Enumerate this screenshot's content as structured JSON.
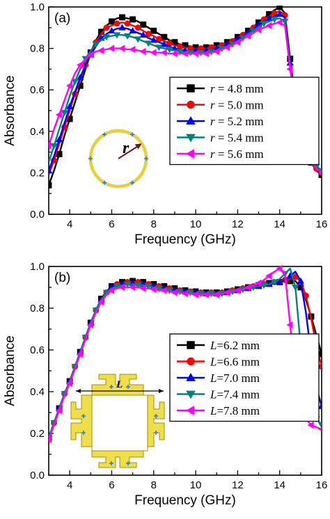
{
  "chart_data": [
    {
      "type": "line",
      "panel_label": "(a)",
      "xlabel": "Frequency (GHz)",
      "ylabel": "Absorbance",
      "xlim": [
        3,
        16
      ],
      "ylim": [
        0.0,
        1.0
      ],
      "xticks": [
        "4",
        "6",
        "8",
        "10",
        "12",
        "14",
        "16"
      ],
      "yticks": [
        "0.0",
        "0.2",
        "0.4",
        "0.6",
        "0.8",
        "1.0"
      ],
      "legend_position": "center-right",
      "inset_label": "r",
      "x": [
        3,
        3.25,
        3.5,
        3.75,
        4,
        4.25,
        4.5,
        4.75,
        5,
        5.25,
        5.5,
        5.75,
        6,
        6.25,
        6.5,
        6.75,
        7,
        7.25,
        7.5,
        7.75,
        8,
        8.25,
        8.5,
        8.75,
        9,
        9.25,
        9.5,
        9.75,
        10,
        10.25,
        10.5,
        10.75,
        11,
        11.25,
        11.5,
        11.75,
        12,
        12.25,
        12.5,
        12.75,
        13,
        13.25,
        13.5,
        13.75,
        14,
        14.25,
        14.5,
        14.75,
        15,
        15.25,
        15.5,
        15.75,
        16
      ],
      "series": [
        {
          "name_var": "r",
          "name_val": " = 4.8 mm",
          "color": "#000000",
          "marker": "square",
          "values": [
            0.14,
            0.21,
            0.29,
            0.38,
            0.46,
            0.54,
            0.62,
            0.7,
            0.78,
            0.84,
            0.88,
            0.91,
            0.93,
            0.945,
            0.95,
            0.945,
            0.94,
            0.93,
            0.915,
            0.9,
            0.885,
            0.87,
            0.855,
            0.84,
            0.83,
            0.82,
            0.815,
            0.81,
            0.805,
            0.805,
            0.805,
            0.81,
            0.815,
            0.82,
            0.83,
            0.84,
            0.855,
            0.87,
            0.885,
            0.905,
            0.925,
            0.945,
            0.965,
            0.985,
            1.0,
            0.97,
            0.75,
            0.55,
            0.4,
            0.3,
            0.25,
            0.21,
            0.19
          ]
        },
        {
          "name_var": "r",
          "name_val": " = 5.0 mm",
          "color": "#ff0000",
          "marker": "circle",
          "values": [
            0.19,
            0.26,
            0.34,
            0.42,
            0.5,
            0.58,
            0.65,
            0.72,
            0.78,
            0.83,
            0.87,
            0.9,
            0.91,
            0.92,
            0.925,
            0.92,
            0.91,
            0.9,
            0.885,
            0.87,
            0.86,
            0.845,
            0.835,
            0.825,
            0.815,
            0.81,
            0.805,
            0.8,
            0.8,
            0.8,
            0.8,
            0.805,
            0.81,
            0.815,
            0.825,
            0.835,
            0.85,
            0.865,
            0.88,
            0.9,
            0.92,
            0.94,
            0.955,
            0.97,
            0.98,
            0.96,
            0.74,
            0.54,
            0.4,
            0.31,
            0.26,
            0.22,
            0.2
          ]
        },
        {
          "name_var": "r",
          "name_val": " = 5.2 mm",
          "color": "#0000ff",
          "marker": "triangle-up",
          "values": [
            0.21,
            0.28,
            0.36,
            0.44,
            0.52,
            0.59,
            0.66,
            0.72,
            0.77,
            0.81,
            0.85,
            0.87,
            0.885,
            0.895,
            0.9,
            0.895,
            0.885,
            0.875,
            0.865,
            0.85,
            0.84,
            0.83,
            0.82,
            0.81,
            0.8,
            0.795,
            0.79,
            0.79,
            0.79,
            0.79,
            0.79,
            0.795,
            0.8,
            0.81,
            0.82,
            0.83,
            0.845,
            0.86,
            0.875,
            0.895,
            0.915,
            0.93,
            0.945,
            0.955,
            0.965,
            0.95,
            0.73,
            0.54,
            0.4,
            0.31,
            0.26,
            0.23,
            0.21
          ]
        },
        {
          "name_var": "r",
          "name_val": " = 5.4 mm",
          "color": "#008080",
          "marker": "triangle-down",
          "values": [
            0.25,
            0.33,
            0.41,
            0.49,
            0.57,
            0.64,
            0.7,
            0.75,
            0.79,
            0.82,
            0.84,
            0.855,
            0.86,
            0.865,
            0.865,
            0.86,
            0.855,
            0.845,
            0.835,
            0.825,
            0.815,
            0.805,
            0.8,
            0.795,
            0.79,
            0.785,
            0.78,
            0.78,
            0.78,
            0.78,
            0.78,
            0.785,
            0.79,
            0.8,
            0.81,
            0.82,
            0.835,
            0.85,
            0.87,
            0.885,
            0.905,
            0.92,
            0.93,
            0.94,
            0.945,
            0.93,
            0.72,
            0.53,
            0.4,
            0.31,
            0.26,
            0.23,
            0.21
          ]
        },
        {
          "name_var": "r",
          "name_val": " = 5.6 mm",
          "color": "#ff00ff",
          "marker": "triangle-left",
          "values": [
            0.33,
            0.41,
            0.48,
            0.55,
            0.62,
            0.68,
            0.72,
            0.75,
            0.77,
            0.785,
            0.79,
            0.795,
            0.8,
            0.8,
            0.8,
            0.795,
            0.795,
            0.79,
            0.785,
            0.785,
            0.78,
            0.78,
            0.78,
            0.775,
            0.775,
            0.775,
            0.775,
            0.775,
            0.775,
            0.775,
            0.775,
            0.78,
            0.785,
            0.795,
            0.805,
            0.815,
            0.83,
            0.845,
            0.86,
            0.875,
            0.89,
            0.9,
            0.91,
            0.92,
            0.925,
            0.91,
            0.7,
            0.52,
            0.39,
            0.3,
            0.25,
            0.22,
            0.2
          ]
        }
      ]
    },
    {
      "type": "line",
      "panel_label": "(b)",
      "xlabel": "Frequency (GHz)",
      "ylabel": "Absorbance",
      "xlim": [
        3,
        16
      ],
      "ylim": [
        0.0,
        1.0
      ],
      "xticks": [
        "4",
        "6",
        "8",
        "10",
        "12",
        "14",
        "16"
      ],
      "yticks": [
        "0.0",
        "0.2",
        "0.4",
        "0.6",
        "0.8",
        "1.0"
      ],
      "legend_position": "center-right",
      "inset_label": "L",
      "x": [
        3,
        3.25,
        3.5,
        3.75,
        4,
        4.25,
        4.5,
        4.75,
        5,
        5.25,
        5.5,
        5.75,
        6,
        6.25,
        6.5,
        6.75,
        7,
        7.25,
        7.5,
        7.75,
        8,
        8.25,
        8.5,
        8.75,
        9,
        9.25,
        9.5,
        9.75,
        10,
        10.25,
        10.5,
        10.75,
        11,
        11.25,
        11.5,
        11.75,
        12,
        12.25,
        12.5,
        12.75,
        13,
        13.25,
        13.5,
        13.75,
        14,
        14.25,
        14.5,
        14.75,
        15,
        15.25,
        15.5,
        15.75,
        16
      ],
      "series": [
        {
          "name_var": "L",
          "name_val": "=6.2 mm",
          "color": "#000000",
          "marker": "square",
          "values": [
            0.18,
            0.25,
            0.32,
            0.39,
            0.45,
            0.52,
            0.59,
            0.66,
            0.73,
            0.79,
            0.845,
            0.88,
            0.905,
            0.92,
            0.925,
            0.93,
            0.93,
            0.93,
            0.925,
            0.92,
            0.915,
            0.91,
            0.905,
            0.9,
            0.895,
            0.89,
            0.885,
            0.88,
            0.88,
            0.88,
            0.875,
            0.875,
            0.875,
            0.875,
            0.88,
            0.885,
            0.89,
            0.895,
            0.9,
            0.905,
            0.91,
            0.915,
            0.92,
            0.925,
            0.925,
            0.93,
            0.93,
            0.93,
            0.9,
            0.84,
            0.76,
            0.67,
            0.58
          ]
        },
        {
          "name_var": "L",
          "name_val": "=6.6 mm",
          "color": "#ff0000",
          "marker": "circle",
          "values": [
            0.18,
            0.25,
            0.32,
            0.39,
            0.45,
            0.52,
            0.59,
            0.66,
            0.73,
            0.79,
            0.84,
            0.875,
            0.9,
            0.915,
            0.92,
            0.925,
            0.925,
            0.925,
            0.92,
            0.915,
            0.91,
            0.905,
            0.9,
            0.895,
            0.89,
            0.885,
            0.88,
            0.88,
            0.875,
            0.875,
            0.875,
            0.875,
            0.875,
            0.875,
            0.88,
            0.885,
            0.89,
            0.895,
            0.9,
            0.905,
            0.91,
            0.915,
            0.92,
            0.925,
            0.93,
            0.935,
            0.94,
            0.95,
            0.93,
            0.86,
            0.75,
            0.62,
            0.52
          ]
        },
        {
          "name_var": "L",
          "name_val": "=7.0 mm",
          "color": "#0000ff",
          "marker": "triangle-up",
          "values": [
            0.18,
            0.25,
            0.32,
            0.39,
            0.45,
            0.52,
            0.59,
            0.66,
            0.73,
            0.79,
            0.84,
            0.875,
            0.9,
            0.91,
            0.915,
            0.92,
            0.92,
            0.915,
            0.915,
            0.91,
            0.905,
            0.9,
            0.895,
            0.89,
            0.885,
            0.88,
            0.88,
            0.875,
            0.875,
            0.87,
            0.87,
            0.87,
            0.87,
            0.875,
            0.875,
            0.88,
            0.885,
            0.89,
            0.895,
            0.9,
            0.905,
            0.91,
            0.915,
            0.92,
            0.925,
            0.935,
            0.955,
            0.975,
            0.93,
            0.78,
            0.58,
            0.42,
            0.33
          ]
        },
        {
          "name_var": "L",
          "name_val": "=7.4 mm",
          "color": "#008080",
          "marker": "triangle-down",
          "values": [
            0.18,
            0.25,
            0.32,
            0.39,
            0.45,
            0.52,
            0.59,
            0.66,
            0.73,
            0.79,
            0.84,
            0.875,
            0.895,
            0.905,
            0.91,
            0.915,
            0.915,
            0.91,
            0.91,
            0.905,
            0.9,
            0.895,
            0.89,
            0.885,
            0.88,
            0.88,
            0.875,
            0.875,
            0.87,
            0.87,
            0.87,
            0.87,
            0.87,
            0.87,
            0.875,
            0.88,
            0.885,
            0.89,
            0.895,
            0.9,
            0.905,
            0.91,
            0.915,
            0.925,
            0.94,
            0.965,
            0.99,
            0.9,
            0.62,
            0.43,
            0.33,
            0.27,
            0.24
          ]
        },
        {
          "name_var": "L",
          "name_val": "=7.8 mm",
          "color": "#ff00ff",
          "marker": "triangle-left",
          "values": [
            0.17,
            0.24,
            0.31,
            0.38,
            0.44,
            0.51,
            0.58,
            0.65,
            0.72,
            0.78,
            0.83,
            0.865,
            0.885,
            0.895,
            0.9,
            0.9,
            0.9,
            0.9,
            0.895,
            0.895,
            0.89,
            0.885,
            0.885,
            0.88,
            0.875,
            0.875,
            0.87,
            0.87,
            0.865,
            0.865,
            0.865,
            0.865,
            0.865,
            0.87,
            0.875,
            0.88,
            0.885,
            0.89,
            0.9,
            0.91,
            0.92,
            0.935,
            0.955,
            0.975,
            0.99,
            0.97,
            0.72,
            0.45,
            0.33,
            0.27,
            0.24,
            0.23,
            0.22
          ]
        }
      ]
    }
  ]
}
